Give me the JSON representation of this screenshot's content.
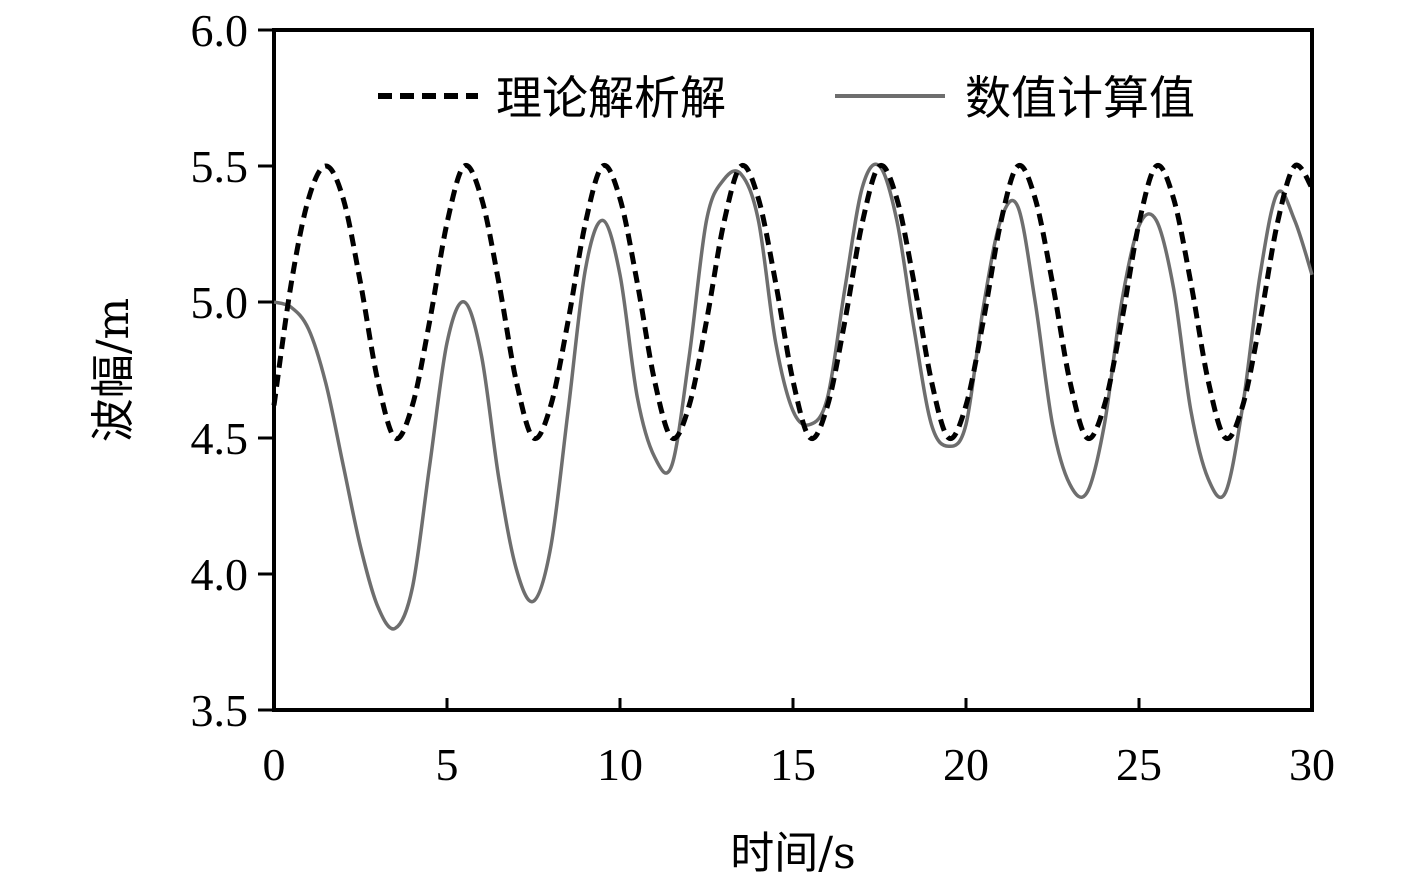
{
  "chart_data": {
    "type": "line",
    "title": "",
    "xlabel": "时间/s",
    "ylabel": "波幅/m",
    "xlim": [
      0,
      30
    ],
    "ylim": [
      3.5,
      6.0
    ],
    "xticks": [
      0,
      5,
      10,
      15,
      20,
      25,
      30
    ],
    "yticks": [
      3.5,
      4.0,
      4.5,
      5.0,
      5.5,
      6.0
    ],
    "xtick_labels": [
      "0",
      "5",
      "10",
      "15",
      "20",
      "25",
      "30"
    ],
    "ytick_labels": [
      "3.5",
      "4.0",
      "4.5",
      "5.0",
      "5.5",
      "6.0"
    ],
    "grid": false,
    "legend_position": "top",
    "series": [
      {
        "name": "理论解析解",
        "style": "dashed",
        "color": "#000000",
        "x": [
          0,
          0.5,
          1.0,
          1.5,
          2.0,
          2.5,
          3.0,
          3.5,
          4.0,
          4.5,
          5.0,
          5.5,
          6.0,
          6.5,
          7.0,
          7.5,
          8.0,
          8.5,
          9.0,
          9.5,
          10.0,
          10.5,
          11.0,
          11.5,
          12.0,
          12.5,
          13.0,
          13.5,
          14.0,
          14.5,
          15.0,
          15.5,
          16.0,
          16.5,
          17.0,
          17.5,
          18.0,
          18.5,
          19.0,
          19.5,
          20.0,
          20.5,
          21.0,
          21.5,
          22.0,
          22.5,
          23.0,
          23.5,
          24.0,
          24.5,
          25.0,
          25.5,
          26.0,
          26.5,
          27.0,
          27.5,
          28.0,
          28.5,
          29.0,
          29.5,
          30.0
        ],
        "y": [
          4.62,
          5.07,
          5.38,
          5.5,
          5.38,
          5.07,
          4.71,
          4.5,
          4.62,
          4.93,
          5.29,
          5.5,
          5.38,
          5.07,
          4.71,
          4.5,
          4.62,
          4.93,
          5.29,
          5.5,
          5.38,
          5.07,
          4.71,
          4.5,
          4.62,
          4.93,
          5.29,
          5.5,
          5.38,
          5.07,
          4.71,
          4.5,
          4.62,
          4.93,
          5.29,
          5.5,
          5.38,
          5.07,
          4.71,
          4.5,
          4.62,
          4.93,
          5.29,
          5.5,
          5.38,
          5.07,
          4.71,
          4.5,
          4.62,
          4.93,
          5.29,
          5.5,
          5.38,
          5.07,
          4.71,
          4.5,
          4.62,
          4.93,
          5.29,
          5.5,
          5.42
        ]
      },
      {
        "name": "数值计算值",
        "style": "solid",
        "color": "#6e6e6e",
        "x": [
          0,
          0.5,
          1.0,
          1.5,
          2.0,
          2.5,
          3.0,
          3.5,
          4.0,
          4.5,
          5.0,
          5.5,
          6.0,
          6.5,
          7.0,
          7.5,
          8.0,
          8.5,
          9.0,
          9.5,
          10.0,
          10.5,
          11.0,
          11.5,
          12.0,
          12.5,
          13.0,
          13.5,
          14.0,
          14.5,
          15.0,
          15.5,
          16.0,
          16.5,
          17.0,
          17.5,
          18.0,
          18.5,
          19.0,
          19.5,
          20.0,
          20.5,
          21.0,
          21.5,
          22.0,
          22.5,
          23.0,
          23.5,
          24.0,
          24.5,
          25.0,
          25.5,
          26.0,
          26.5,
          27.0,
          27.5,
          28.0,
          28.5,
          29.0,
          29.5,
          30.0
        ],
        "y": [
          5.0,
          4.98,
          4.9,
          4.7,
          4.4,
          4.1,
          3.88,
          3.8,
          3.95,
          4.4,
          4.85,
          5.0,
          4.8,
          4.35,
          4.02,
          3.9,
          4.1,
          4.6,
          5.12,
          5.3,
          5.1,
          4.65,
          4.43,
          4.4,
          4.8,
          5.3,
          5.45,
          5.47,
          5.3,
          4.85,
          4.6,
          4.55,
          4.65,
          5.05,
          5.42,
          5.5,
          5.3,
          4.9,
          4.55,
          4.47,
          4.55,
          4.98,
          5.3,
          5.35,
          5.0,
          4.55,
          4.33,
          4.3,
          4.55,
          5.0,
          5.28,
          5.3,
          5.05,
          4.6,
          4.35,
          4.3,
          4.62,
          5.1,
          5.4,
          5.3,
          5.1
        ]
      }
    ]
  }
}
